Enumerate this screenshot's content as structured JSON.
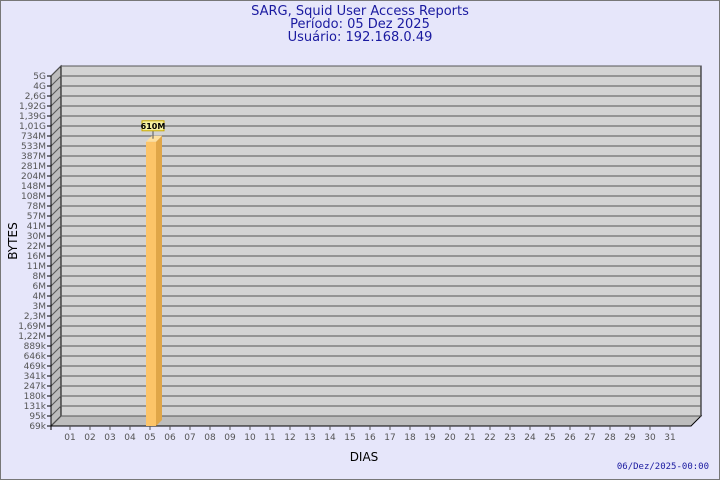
{
  "chart_data": {
    "type": "bar",
    "title": "SARG, Squid User Access Reports",
    "subtitle_period": "Período: 05 Dez 2025",
    "subtitle_user": "Usuário: 192.168.0.49",
    "xlabel": "DIAS",
    "ylabel": "BYTES",
    "y_scale": "log",
    "y_ticks": [
      "5G",
      "4G",
      "2,6G",
      "1,92G",
      "1,39G",
      "1,01G",
      "734M",
      "533M",
      "387M",
      "281M",
      "204M",
      "148M",
      "108M",
      "78M",
      "57M",
      "41M",
      "30M",
      "22M",
      "16M",
      "11M",
      "8M",
      "6M",
      "4M",
      "3M",
      "2,3M",
      "1,69M",
      "1,22M",
      "889k",
      "646k",
      "469k",
      "341k",
      "247k",
      "180k",
      "131k",
      "95k",
      "69k"
    ],
    "categories": [
      "01",
      "02",
      "03",
      "04",
      "05",
      "06",
      "07",
      "08",
      "09",
      "10",
      "11",
      "12",
      "13",
      "14",
      "15",
      "16",
      "17",
      "18",
      "19",
      "20",
      "21",
      "22",
      "23",
      "24",
      "25",
      "26",
      "27",
      "28",
      "29",
      "30",
      "31"
    ],
    "values": [
      null,
      null,
      null,
      null,
      610000000,
      null,
      null,
      null,
      null,
      null,
      null,
      null,
      null,
      null,
      null,
      null,
      null,
      null,
      null,
      null,
      null,
      null,
      null,
      null,
      null,
      null,
      null,
      null,
      null,
      null,
      null
    ],
    "data_labels": {
      "05": "610M"
    },
    "grid": true,
    "colors": {
      "bar_front": "#fcc468",
      "bar_side": "#e0a648",
      "plot_bg": "#d3d3d3",
      "page_bg": "#e6e6fa",
      "title": "#1a1aa0"
    }
  },
  "footer": {
    "timestamp": "06/Dez/2025-00:00"
  }
}
